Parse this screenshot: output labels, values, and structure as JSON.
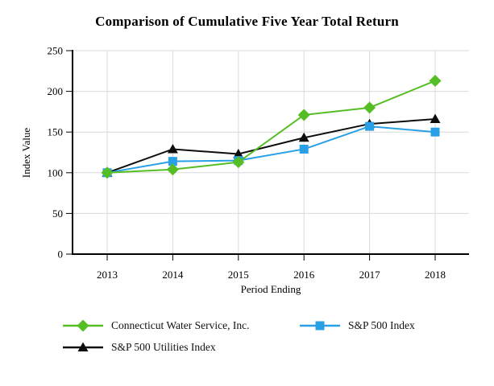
{
  "title": "Comparison of Cumulative Five Year Total Return",
  "chart_data": {
    "type": "line",
    "title": "Comparison of Cumulative Five Year Total Return",
    "xlabel": "Period Ending",
    "ylabel": "Index Value",
    "categories": [
      "2013",
      "2014",
      "2015",
      "2016",
      "2017",
      "2018"
    ],
    "ylim": [
      0,
      250
    ],
    "yticks": [
      0,
      50,
      100,
      150,
      200,
      250
    ],
    "grid": true,
    "legend_position": "bottom",
    "series": [
      {
        "name": "Connecticut Water Service, Inc.",
        "marker": "diamond",
        "color": "#55BE25",
        "values": [
          100,
          104,
          113,
          171,
          180,
          213
        ]
      },
      {
        "name": "S&P 500 Index",
        "marker": "square",
        "color": "#29A0E6",
        "values": [
          100,
          114,
          115,
          129,
          157,
          150
        ]
      },
      {
        "name": "S&P 500 Utilities Index",
        "marker": "triangle",
        "color": "#0d0d0d",
        "values": [
          100,
          129,
          123,
          143,
          160,
          166
        ]
      }
    ],
    "colors": {
      "gridline": "#d9d9d9",
      "axis": "#000000",
      "tick_label": "#000000",
      "background": "#ffffff"
    }
  }
}
